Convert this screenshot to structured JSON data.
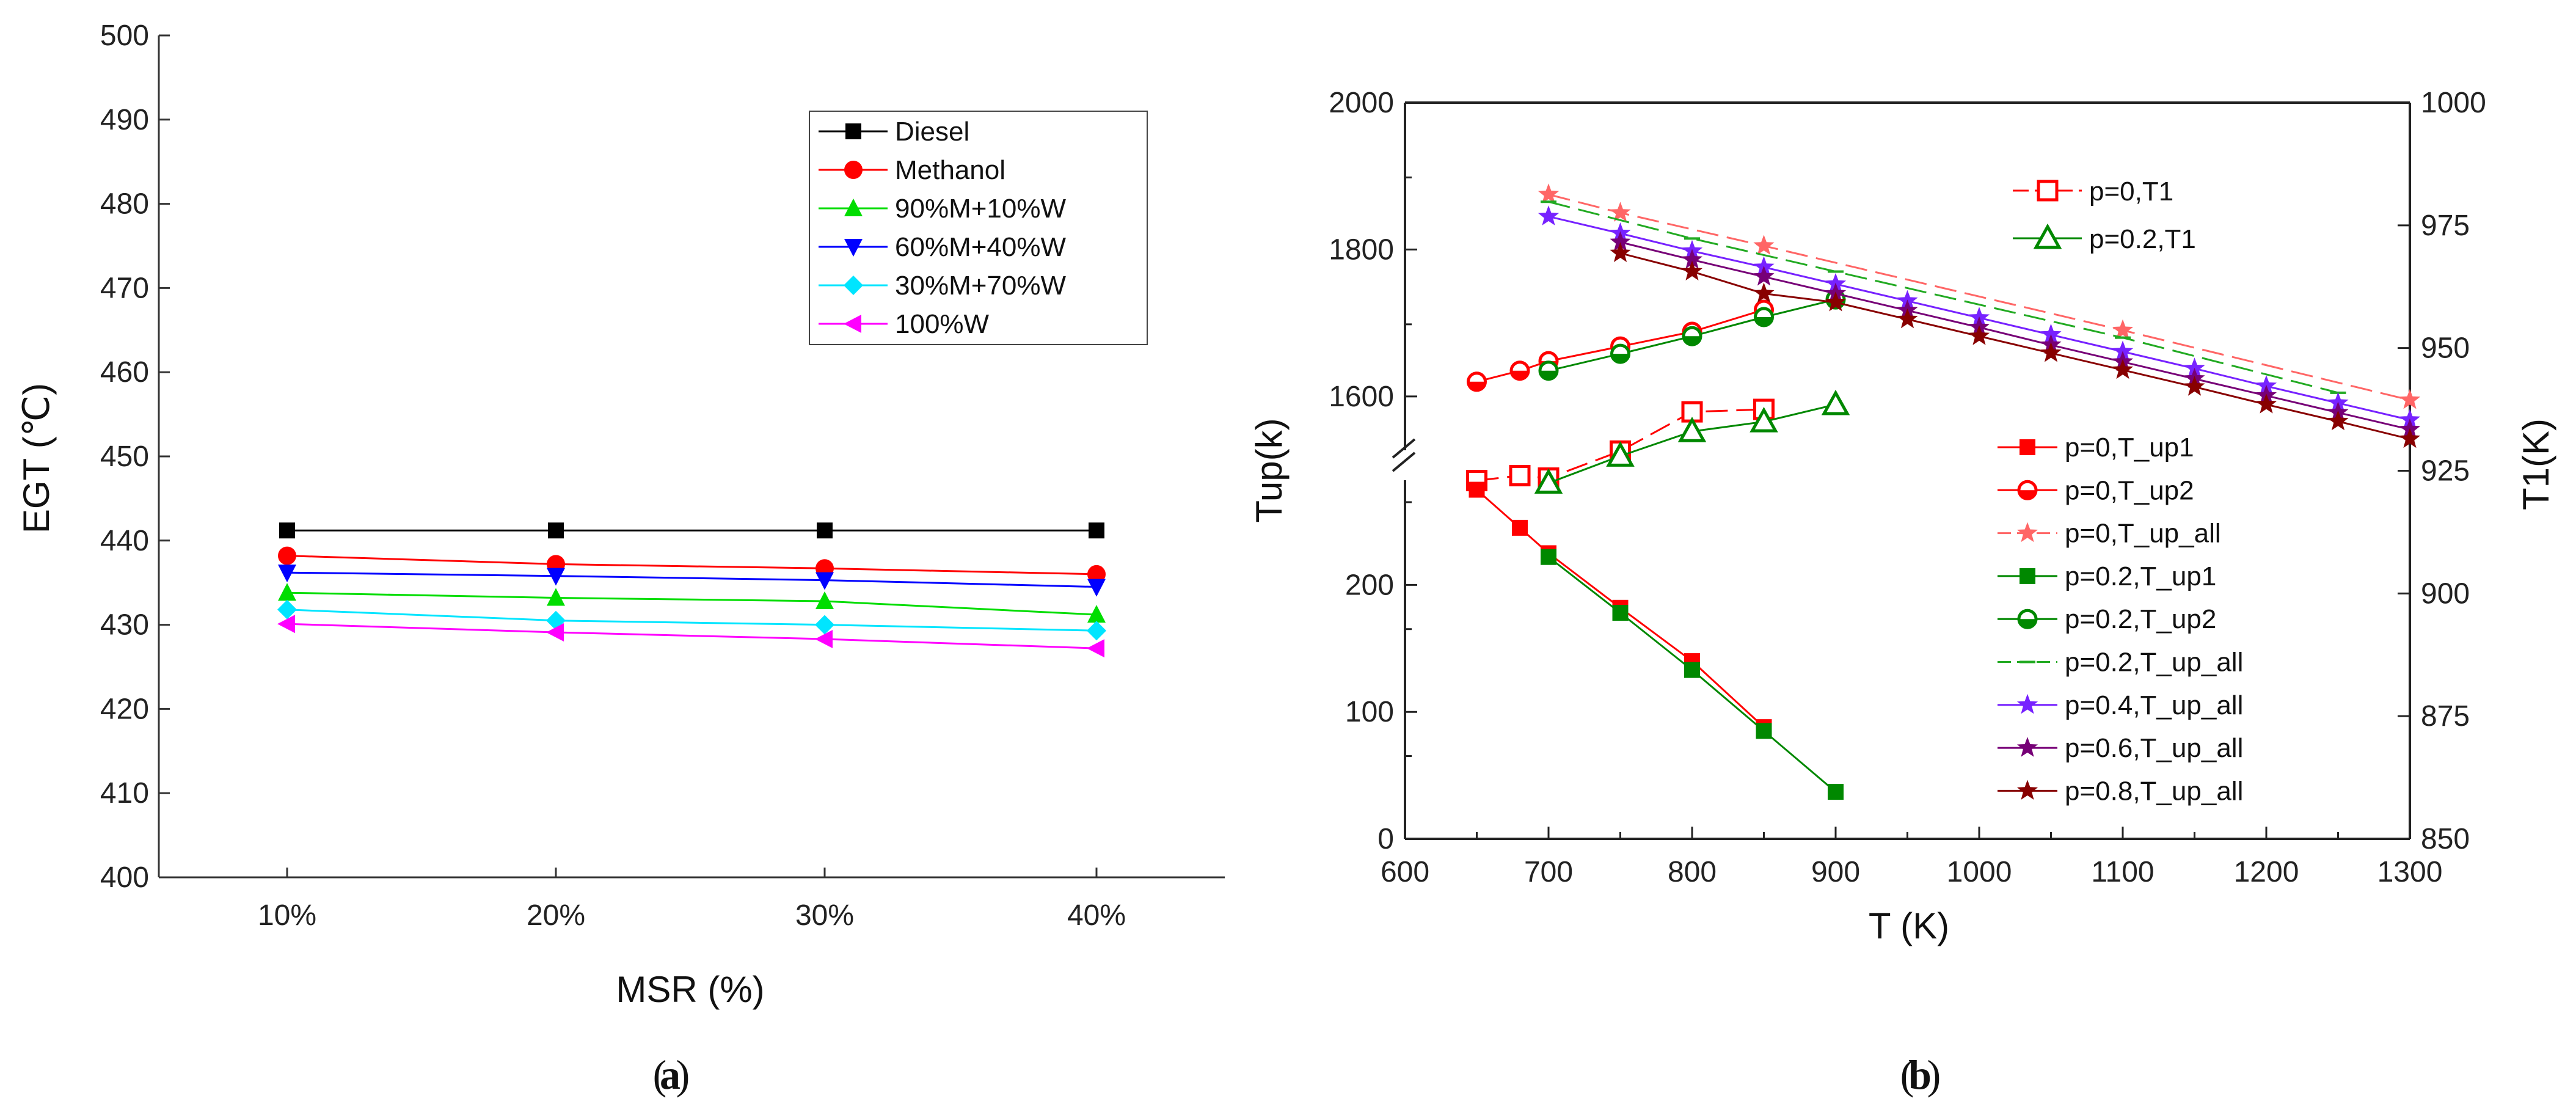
{
  "chart_data": [
    {
      "type": "line",
      "panel": "(a)",
      "panel_label": "a",
      "xlabel": "MSR (%)",
      "ylabel": "EGT (℃)",
      "categories": [
        "10%",
        "20%",
        "30%",
        "40%"
      ],
      "ylim": [
        400,
        500
      ],
      "yticks": [
        "400",
        "410",
        "420",
        "430",
        "440",
        "450",
        "460",
        "470",
        "480",
        "490",
        "500"
      ],
      "grid": false,
      "legend_position": "top-right",
      "series": [
        {
          "name": "Diesel",
          "color": "#000000",
          "marker": "square",
          "values": [
            441.2,
            441.2,
            441.2,
            441.2
          ]
        },
        {
          "name": "Methanol",
          "color": "#ff0000",
          "marker": "circle",
          "values": [
            438.2,
            437.2,
            436.7,
            436.0
          ]
        },
        {
          "name": "90%M+10%W",
          "color": "#00dd00",
          "marker": "triangle-up",
          "values": [
            433.8,
            433.2,
            432.8,
            431.2
          ]
        },
        {
          "name": "60%M+40%W",
          "color": "#0000ff",
          "marker": "triangle-down",
          "values": [
            436.2,
            435.8,
            435.3,
            434.5
          ]
        },
        {
          "name": "30%M+70%W",
          "color": "#00e5ff",
          "marker": "diamond",
          "values": [
            431.8,
            430.5,
            430.0,
            429.3
          ]
        },
        {
          "name": "100%W",
          "color": "#ff00ff",
          "marker": "triangle-left",
          "values": [
            430.1,
            429.1,
            428.3,
            427.2
          ]
        }
      ]
    },
    {
      "type": "line",
      "panel": "(b)",
      "panel_label": "b",
      "xlabel": "T (K)",
      "ylabel": "Tup(k)",
      "y2label": "T1(K)",
      "xlim": [
        600,
        1300
      ],
      "xticks": [
        "600",
        "700",
        "800",
        "900",
        "1000",
        "1100",
        "1200",
        "1300"
      ],
      "y_lower_ticks": [
        "0",
        "100",
        "200"
      ],
      "y_upper_ticks": [
        "1600",
        "1800",
        "2000"
      ],
      "y_lower_range": [
        0,
        295
      ],
      "y_upper_range": [
        1520,
        2000
      ],
      "y2lim": [
        850,
        1000
      ],
      "y2ticks": [
        "850",
        "875",
        "900",
        "925",
        "950",
        "975",
        "1000"
      ],
      "axis_break": true,
      "grid": false,
      "series": [
        {
          "name": "p=0,T1",
          "axis": "right",
          "color": "#ff0000",
          "marker": "square-open",
          "dashed": true,
          "x": [
            650,
            680,
            700,
            750,
            800,
            850
          ],
          "y": [
            923,
            924,
            923.5,
            929,
            937,
            937.5
          ]
        },
        {
          "name": "p=0.2,T1",
          "axis": "right",
          "color": "#008800",
          "marker": "triangle-open",
          "dashed": false,
          "x": [
            700,
            750,
            800,
            850,
            900
          ],
          "y": [
            922.5,
            928,
            933,
            935,
            938.5
          ]
        },
        {
          "name": "p=0,T_up1",
          "axis": "left",
          "color": "#ff0000",
          "marker": "square",
          "dashed": false,
          "x": [
            650,
            680,
            700,
            750,
            800,
            850
          ],
          "y": [
            275,
            245,
            225,
            182,
            140,
            88
          ]
        },
        {
          "name": "p=0,T_up2",
          "axis": "left",
          "color": "#ff0000",
          "marker": "circle-half",
          "dashed": false,
          "x": [
            650,
            680,
            700,
            750,
            800,
            850
          ],
          "y": [
            1620,
            1635,
            1648,
            1668,
            1688,
            1718
          ]
        },
        {
          "name": "p=0,T_up_all",
          "axis": "left",
          "color": "#ff6666",
          "marker": "star",
          "dashed": true,
          "x": [
            700,
            750,
            850,
            1100,
            1300
          ],
          "y": [
            1875,
            1850,
            1805,
            1690,
            1595
          ]
        },
        {
          "name": "p=0.2,T_up1",
          "axis": "left",
          "color": "#008800",
          "marker": "square",
          "dashed": false,
          "x": [
            700,
            750,
            800,
            850,
            900
          ],
          "y": [
            222,
            178,
            133,
            85,
            37
          ]
        },
        {
          "name": "p=0.2,T_up2",
          "axis": "left",
          "color": "#008800",
          "marker": "circle-half",
          "dashed": false,
          "x": [
            700,
            750,
            800,
            850,
            900
          ],
          "y": [
            1635,
            1658,
            1682,
            1708,
            1732
          ]
        },
        {
          "name": "p=0.2,T_up_all",
          "axis": "left",
          "color": "#22aa22",
          "marker": "dash",
          "dashed": true,
          "x": [
            700,
            800,
            900,
            1100,
            1250
          ],
          "y": [
            1865,
            1815,
            1770,
            1680,
            1605
          ]
        },
        {
          "name": "p=0.4,T_up_all",
          "axis": "left",
          "color": "#7722ff",
          "marker": "star",
          "dashed": false,
          "x": [
            700,
            750,
            800,
            850,
            900,
            950,
            1000,
            1050,
            1100,
            1150,
            1200,
            1250,
            1300
          ],
          "y": [
            1845,
            1822,
            1798,
            1776,
            1753,
            1730,
            1707,
            1684,
            1661,
            1638,
            1614,
            1591,
            1568
          ]
        },
        {
          "name": "p=0.6,T_up_all",
          "axis": "left",
          "color": "#770077",
          "marker": "star",
          "dashed": false,
          "x": [
            750,
            800,
            850,
            900,
            950,
            1000,
            1050,
            1100,
            1150,
            1200,
            1250,
            1300
          ],
          "y": [
            1810,
            1786,
            1763,
            1740,
            1717,
            1694,
            1670,
            1647,
            1624,
            1601,
            1578,
            1555
          ]
        },
        {
          "name": "p=0.8,T_up_all",
          "axis": "left",
          "color": "#880000",
          "marker": "star",
          "dashed": false,
          "x": [
            750,
            800,
            850,
            900,
            950,
            1000,
            1050,
            1100,
            1150,
            1200,
            1250,
            1300
          ],
          "y": [
            1795,
            1770,
            1740,
            1728,
            1705,
            1682,
            1659,
            1636,
            1613,
            1589,
            1566,
            1542
          ]
        }
      ]
    }
  ]
}
